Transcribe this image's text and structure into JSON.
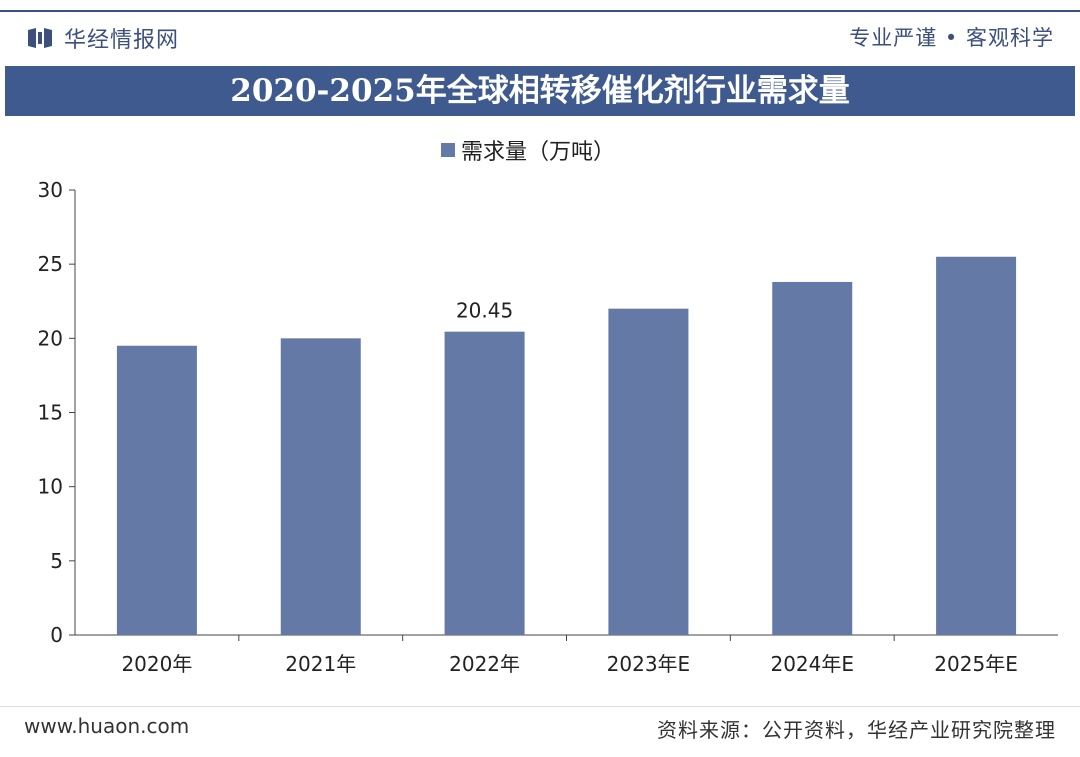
{
  "header": {
    "brand": "华经情报网",
    "slogan": "专业严谨 • 客观科学"
  },
  "footer": {
    "website": "www.huaon.com",
    "source": "资料来源：公开资料，华经产业研究院整理"
  },
  "colors": {
    "brand": "#3c4f7d",
    "title_bar": "#3f5a8e",
    "bar": "#6479a5"
  },
  "chart_data": {
    "type": "bar",
    "title": "2020-2025年全球相转移催化剂行业需求量",
    "categories": [
      "2020年",
      "2021年",
      "2022年",
      "2023年E",
      "2024年E",
      "2025年E"
    ],
    "series": [
      {
        "name": "需求量（万吨）",
        "values": [
          19.5,
          20.0,
          20.45,
          22.0,
          23.8,
          25.5
        ]
      }
    ],
    "data_labels": [
      {
        "category": "2022年",
        "text": "20.45"
      }
    ],
    "yticks": [
      "0",
      "5",
      "10",
      "15",
      "20",
      "25",
      "30"
    ],
    "ylim": [
      0,
      30
    ],
    "grid": false,
    "legend": "top-center"
  }
}
